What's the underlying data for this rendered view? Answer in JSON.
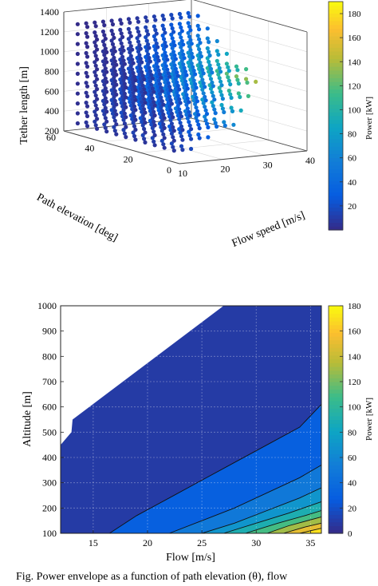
{
  "chart_data": [
    {
      "type": "scatter",
      "projection": "3d",
      "title": "",
      "xlabel": "Flow speed [m/s]",
      "ylabel": "Path elevation [deg]",
      "zlabel": "Tether length [m]",
      "xlim": [
        10,
        40
      ],
      "ylim": [
        0,
        60
      ],
      "zlim": [
        200,
        1400
      ],
      "xticks": [
        "10",
        "20",
        "30",
        "40"
      ],
      "yticks": [
        "0",
        "20",
        "40",
        "60"
      ],
      "zticks": [
        "200",
        "400",
        "600",
        "800",
        "1000",
        "1200",
        "1400"
      ],
      "grid": true,
      "colorbar": {
        "label": "Power [kW]",
        "range": [
          0,
          190
        ],
        "ticks": [
          "20",
          "40",
          "60",
          "80",
          "100",
          "120",
          "140",
          "160",
          "180"
        ],
        "colormap": "parula"
      },
      "point_grid": {
        "flow_speed": [
          11,
          13,
          15,
          17,
          19,
          21,
          23,
          25,
          27,
          29,
          31,
          33,
          35,
          37
        ],
        "path_elevation": [
          5,
          10,
          15,
          20,
          25,
          30,
          35,
          40,
          45,
          50,
          55
        ],
        "tether_length": [
          300,
          400,
          500,
          600,
          700,
          800,
          900,
          1000,
          1100,
          1200,
          1300
        ]
      }
    },
    {
      "type": "contour",
      "title": "",
      "xlabel": "Flow [m/s]",
      "ylabel": "Altitude [m]",
      "xlim": [
        12,
        36
      ],
      "ylim": [
        100,
        1000
      ],
      "xticks": [
        "15",
        "20",
        "25",
        "30",
        "35"
      ],
      "yticks": [
        "100",
        "200",
        "300",
        "400",
        "500",
        "600",
        "700",
        "800",
        "900",
        "1000"
      ],
      "grid": true,
      "colorbar": {
        "label": "Power [kW]",
        "range": [
          0,
          180
        ],
        "ticks": [
          "0",
          "20",
          "40",
          "60",
          "80",
          "100",
          "120",
          "140",
          "160",
          "180"
        ],
        "colormap": "parula"
      },
      "region_boundary": [
        [
          12,
          450
        ],
        [
          13,
          500
        ],
        [
          13.1,
          550
        ],
        [
          27,
          1000
        ],
        [
          36,
          1000
        ],
        [
          36,
          100
        ],
        [
          12,
          100
        ]
      ],
      "contour_levels": [
        {
          "level": 20,
          "line": [
            [
              16.5,
              100
            ],
            [
              19,
              170
            ],
            [
              22,
              240
            ],
            [
              25,
              310
            ],
            [
              28,
              380
            ],
            [
              31,
              450
            ],
            [
              34,
              520
            ],
            [
              36,
              610
            ]
          ]
        },
        {
          "level": 40,
          "line": [
            [
              22,
              100
            ],
            [
              25,
              150
            ],
            [
              28,
              200
            ],
            [
              31,
              260
            ],
            [
              34,
              320
            ],
            [
              36,
              370
            ]
          ]
        },
        {
          "level": 60,
          "line": [
            [
              25,
              100
            ],
            [
              28,
              140
            ],
            [
              31,
              190
            ],
            [
              34,
              240
            ],
            [
              36,
              280
            ]
          ]
        },
        {
          "level": 80,
          "line": [
            [
              27,
              100
            ],
            [
              30,
              140
            ],
            [
              33,
              180
            ],
            [
              36,
              225
            ]
          ]
        },
        {
          "level": 100,
          "line": [
            [
              29,
              100
            ],
            [
              32,
              140
            ],
            [
              34.5,
              170
            ],
            [
              36,
              190
            ]
          ]
        },
        {
          "level": 120,
          "line": [
            [
              31,
              100
            ],
            [
              33,
              130
            ],
            [
              36,
              165
            ]
          ]
        },
        {
          "level": 140,
          "line": [
            [
              32.5,
              100
            ],
            [
              34.5,
              125
            ],
            [
              36,
              140
            ]
          ]
        },
        {
          "level": 160,
          "line": [
            [
              34,
              100
            ],
            [
              35,
              110
            ],
            [
              36,
              120
            ]
          ]
        }
      ]
    }
  ],
  "caption": "Fig. Power envelope as a function of path elevation (θ), flow"
}
